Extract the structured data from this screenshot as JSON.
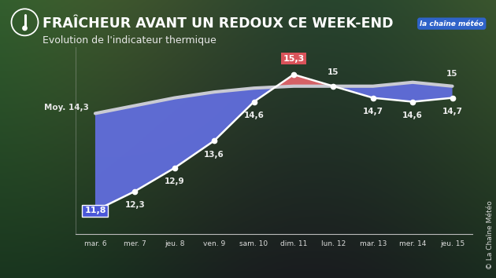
{
  "chart_data": {
    "type": "line",
    "title": "FRAÎCHEUR AVANT UN REDOUX CE WEEK-END",
    "subtitle": "Evolution de l'indicateur thermique",
    "logo": "la chaîne météo",
    "credit": "© La Chaîne Météo",
    "categories": [
      "mar. 6",
      "mer. 7",
      "jeu. 8",
      "ven. 9",
      "sam. 10",
      "dim. 11",
      "lun. 12",
      "mar. 13",
      "mer. 14",
      "jeu. 15"
    ],
    "series": [
      {
        "name": "Moy.",
        "color": "#c9cad3",
        "values": [
          14.3,
          14.5,
          14.7,
          14.85,
          14.95,
          15.0,
          15.0,
          15.0,
          15.1,
          15.0
        ],
        "value_labels": [
          "Moy. 14,3",
          null,
          null,
          null,
          null,
          null,
          null,
          null,
          null,
          "15"
        ]
      },
      {
        "color": "#ffffff",
        "marker": "o",
        "values": [
          11.8,
          12.3,
          12.9,
          13.6,
          14.6,
          15.3,
          15.0,
          14.7,
          14.6,
          14.7
        ],
        "value_labels": [
          "11,8",
          "12,3",
          "12,9",
          "13,6",
          "14,6",
          "15,3",
          "15",
          "14,7",
          "14,6",
          "14,7"
        ]
      }
    ],
    "data_labels": true,
    "ylim": [
      11.2,
      16.0
    ],
    "tick_labels": "x",
    "grid": false
  }
}
